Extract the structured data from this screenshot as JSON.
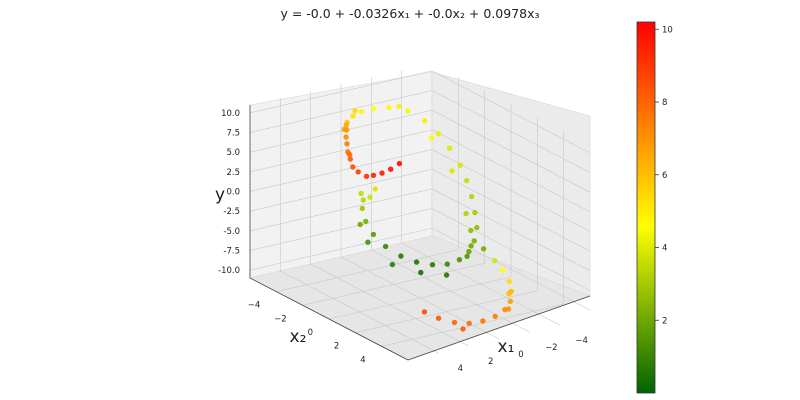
{
  "chart_data": {
    "type": "scatter",
    "title": "y = -0.0 + -0.0326x₁ + -0.0x₂ + 0.0978x₃",
    "xlabel": "x₁",
    "zlabel": "x₂",
    "ylabel": "y",
    "xlim": [
      -6,
      6
    ],
    "zlim": [
      -6,
      6
    ],
    "ylim": [
      -11,
      11
    ],
    "x_ticks": [
      -4,
      -2,
      0,
      2,
      4
    ],
    "z_ticks": [
      -4,
      -2,
      0,
      2,
      4
    ],
    "y_ticks": [
      "-10.0",
      "-7.5",
      "-5.0",
      "-2.5",
      "0.0",
      "2.5",
      "5.0",
      "7.5",
      "10.0"
    ],
    "colorbar": {
      "ticks": [
        2,
        4,
        6,
        8,
        10
      ],
      "range": [
        0,
        10.2
      ],
      "colors": [
        "#006400",
        "#ffff00",
        "#ff0000"
      ]
    },
    "grid": true,
    "points": [
      {
        "x": 3.1,
        "z": -2.0,
        "y": 10.0,
        "c": 7.0
      },
      {
        "x": 3.4,
        "z": -1.7,
        "y": 9.5,
        "c": 7.2
      },
      {
        "x": 3.6,
        "z": -1.4,
        "y": 9.0,
        "c": 7.5
      },
      {
        "x": 3.8,
        "z": -1.1,
        "y": 8.3,
        "c": 7.8
      },
      {
        "x": 3.9,
        "z": -0.8,
        "y": 7.7,
        "c": 8.2
      },
      {
        "x": 4.0,
        "z": -0.5,
        "y": 7.0,
        "c": 8.6
      },
      {
        "x": 3.9,
        "z": -0.2,
        "y": 6.6,
        "c": 8.9
      },
      {
        "x": 3.7,
        "z": 0.2,
        "y": 6.3,
        "c": 9.2
      },
      {
        "x": 3.5,
        "z": 0.5,
        "y": 6.6,
        "c": 9.5
      },
      {
        "x": 3.2,
        "z": 0.8,
        "y": 7.0,
        "c": 9.7
      },
      {
        "x": 2.8,
        "z": 1.0,
        "y": 7.5,
        "c": 9.9
      },
      {
        "x": 2.4,
        "z": 1.2,
        "y": 8.2,
        "c": 10.0
      },
      {
        "x": 3.6,
        "z": -1.2,
        "y": 7.8,
        "c": 8.0
      },
      {
        "x": 3.0,
        "z": -2.3,
        "y": 9.8,
        "c": 6.8
      },
      {
        "x": 2.2,
        "z": -3.0,
        "y": 9.7,
        "c": 5.9
      },
      {
        "x": 1.3,
        "z": -3.6,
        "y": 9.6,
        "c": 5.2
      },
      {
        "x": 0.4,
        "z": -4.0,
        "y": 9.4,
        "c": 4.8
      },
      {
        "x": -0.6,
        "z": -4.2,
        "y": 9.2,
        "c": 4.6
      },
      {
        "x": -1.5,
        "z": -4.1,
        "y": 9.0,
        "c": 4.5
      },
      {
        "x": -2.4,
        "z": -3.7,
        "y": 8.5,
        "c": 4.4
      },
      {
        "x": -3.0,
        "z": -3.1,
        "y": 7.5,
        "c": 4.3
      },
      {
        "x": -3.4,
        "z": -2.5,
        "y": 6.2,
        "c": 4.2
      },
      {
        "x": -3.6,
        "z": -1.9,
        "y": 4.8,
        "c": 4.0
      },
      {
        "x": -3.7,
        "z": -1.2,
        "y": 3.2,
        "c": 3.8
      },
      {
        "x": -3.6,
        "z": -0.6,
        "y": 1.8,
        "c": 3.6
      },
      {
        "x": -3.4,
        "z": 0.0,
        "y": 0.4,
        "c": 3.3
      },
      {
        "x": -3.1,
        "z": 0.6,
        "y": -1.0,
        "c": 3.0
      },
      {
        "x": -2.7,
        "z": 1.2,
        "y": -2.2,
        "c": 2.6
      },
      {
        "x": -2.1,
        "z": 1.7,
        "y": -3.2,
        "c": 2.2
      },
      {
        "x": -1.4,
        "z": 2.1,
        "y": -3.9,
        "c": 1.8
      },
      {
        "x": -0.6,
        "z": 2.3,
        "y": -4.4,
        "c": 1.4
      },
      {
        "x": 0.2,
        "z": 2.3,
        "y": -4.6,
        "c": 1.0
      },
      {
        "x": 1.0,
        "z": 2.1,
        "y": -4.5,
        "c": 0.7
      },
      {
        "x": 1.7,
        "z": 1.7,
        "y": -4.2,
        "c": 0.5
      },
      {
        "x": 2.3,
        "z": 1.2,
        "y": -3.6,
        "c": 0.6
      },
      {
        "x": 2.7,
        "z": 0.5,
        "y": -2.8,
        "c": 1.0
      },
      {
        "x": 2.9,
        "z": -0.2,
        "y": -1.8,
        "c": 1.6
      },
      {
        "x": 2.8,
        "z": -0.9,
        "y": -0.8,
        "c": 2.2
      },
      {
        "x": 2.5,
        "z": -1.5,
        "y": 0.2,
        "c": 2.8
      },
      {
        "x": 2.0,
        "z": -2.0,
        "y": 0.6,
        "c": 3.3
      },
      {
        "x": 1.3,
        "z": -2.3,
        "y": 0.4,
        "c": 3.7
      },
      {
        "x": -3.3,
        "z": -0.3,
        "y": -2.0,
        "c": 3.2
      },
      {
        "x": -3.0,
        "z": 0.4,
        "y": -3.4,
        "c": 2.6
      },
      {
        "x": -2.5,
        "z": 1.0,
        "y": -4.6,
        "c": 2.0
      },
      {
        "x": -1.8,
        "z": 1.5,
        "y": -5.2,
        "c": 1.5
      },
      {
        "x": -3.5,
        "z": 0.8,
        "y": -5.6,
        "c": 2.2
      },
      {
        "x": -3.8,
        "z": 1.3,
        "y": -6.8,
        "c": 3.8
      },
      {
        "x": -3.9,
        "z": 1.8,
        "y": -7.6,
        "c": 4.6
      },
      {
        "x": -3.8,
        "z": 2.4,
        "y": -8.5,
        "c": 5.4
      },
      {
        "x": -3.5,
        "z": 2.9,
        "y": -9.2,
        "c": 6.2
      },
      {
        "x": -3.0,
        "z": 3.4,
        "y": -9.8,
        "c": 6.8
      },
      {
        "x": -2.3,
        "z": 3.8,
        "y": -10.2,
        "c": 7.2
      },
      {
        "x": -1.4,
        "z": 4.1,
        "y": -10.4,
        "c": 7.5
      },
      {
        "x": -0.5,
        "z": 4.2,
        "y": -10.5,
        "c": 7.7
      },
      {
        "x": 0.4,
        "z": 4.2,
        "y": -10.4,
        "c": 7.9
      },
      {
        "x": 1.2,
        "z": 4.0,
        "y": -10.1,
        "c": 8.1
      },
      {
        "x": 1.9,
        "z": 3.6,
        "y": -9.6,
        "c": 8.3
      },
      {
        "x": 2.4,
        "z": 3.1,
        "y": -9.0,
        "c": 8.5
      },
      {
        "x": -3.6,
        "z": 2.6,
        "y": -9.8,
        "c": 6.0
      },
      {
        "x": -2.8,
        "z": 3.5,
        "y": -10.6,
        "c": 7.0
      },
      {
        "x": 0.9,
        "z": 4.3,
        "y": -10.8,
        "c": 8.2
      },
      {
        "x": -3.2,
        "z": -2.8,
        "y": 5.5,
        "c": 4.7
      },
      {
        "x": -3.5,
        "z": -1.6,
        "y": 2.2,
        "c": 3.9
      },
      {
        "x": -2.0,
        "z": -3.9,
        "y": 9.1,
        "c": 4.9
      },
      {
        "x": 0.9,
        "z": -3.9,
        "y": 9.8,
        "c": 5.5
      },
      {
        "x": 2.6,
        "z": -2.6,
        "y": 9.9,
        "c": 6.5
      },
      {
        "x": 1.6,
        "z": 1.9,
        "y": -5.4,
        "c": 0.3
      },
      {
        "x": 0.5,
        "z": 2.6,
        "y": -5.6,
        "c": 0.6
      },
      {
        "x": 2.6,
        "z": 0.9,
        "y": -4.8,
        "c": 0.8
      },
      {
        "x": 3.0,
        "z": -0.5,
        "y": -3.0,
        "c": 1.3
      },
      {
        "x": 2.9,
        "z": -1.2,
        "y": -1.4,
        "c": 2.0
      },
      {
        "x": 1.8,
        "z": -2.4,
        "y": 1.0,
        "c": 3.5
      },
      {
        "x": 0.6,
        "z": -2.7,
        "y": 0.8,
        "c": 3.9
      }
    ]
  }
}
